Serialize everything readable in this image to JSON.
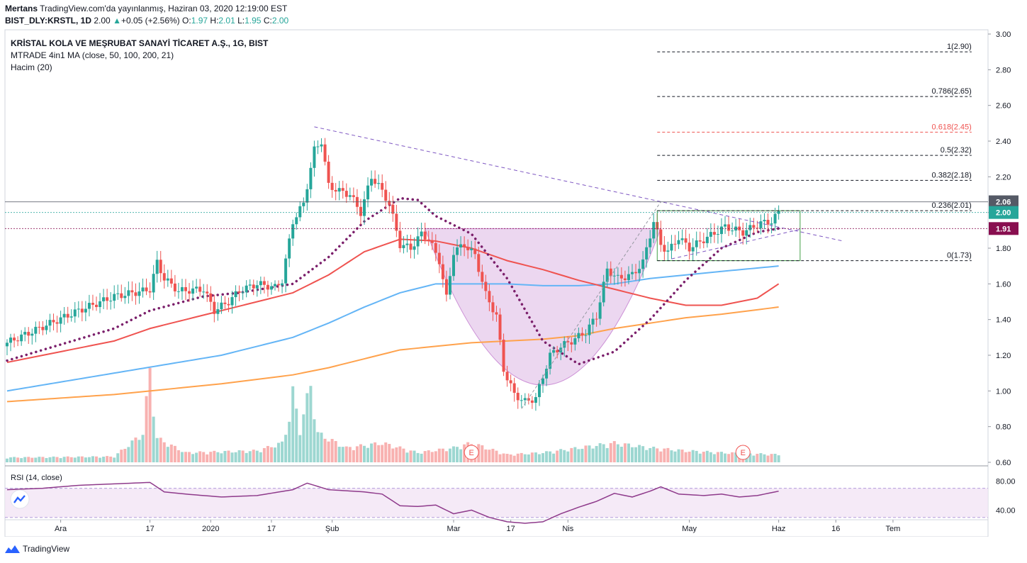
{
  "header": {
    "author": "Mertans",
    "published": "TradingView.com'da yayınlanmış, Haziran 03, 2020 12:19:00 EST",
    "symbol": "BIST_DLY:KRSTL, 1D",
    "price": "2.00",
    "change_arrow": "▲",
    "change": "+0.05 (+2.56%)",
    "o_label": "O:",
    "o": "1.97",
    "h_label": "H:",
    "h": "2.01",
    "l_label": "L:",
    "l": "1.95",
    "c_label": "C:",
    "c": "2.00"
  },
  "legend": {
    "title": "KRİSTAL KOLA VE MEŞRUBAT SANAYİ TİCARET A.Ş., 1G, BIST",
    "ma": "MTRADE 4in1 MA (close, 50, 100, 200, 21)",
    "volume": "Hacim (20)"
  },
  "rsi_label": "RSI (14, close)",
  "footer": {
    "brand": "TradingView"
  },
  "colors": {
    "up": "#26a69a",
    "down": "#ef5350",
    "ma50": "#ef5350",
    "ma100": "#64b5f6",
    "ma200": "#ffa24c",
    "ma21": "#7b1f6b",
    "cup": "#e1bee7",
    "trend": "#7e57c2",
    "rsi": "#8e3a8b",
    "last_price_bg": "#26a69a",
    "level_bg": "#880e4f",
    "prev_high_bg": "#555a66"
  },
  "chart_data": {
    "type": "candlestick",
    "y_axis": {
      "min": 0.6,
      "max": 3.0,
      "ticks": [
        "3.00",
        "2.80",
        "2.60",
        "2.40",
        "2.20",
        "2.00",
        "1.80",
        "1.60",
        "1.40",
        "1.20",
        "1.00",
        "0.80",
        "0.60"
      ]
    },
    "x_axis": {
      "labels": [
        "Ara",
        "17",
        "2020",
        "17",
        "Şub",
        "Mar",
        "17",
        "Nis",
        "May",
        "Haz",
        "16",
        "Tem"
      ],
      "label_bars": [
        15,
        40,
        57,
        74,
        91,
        125,
        141,
        157,
        191,
        216,
        232,
        248
      ],
      "total_bars": 276,
      "last_bar": 216
    },
    "fib_levels": [
      {
        "label": "1(2.90)",
        "value": 2.9
      },
      {
        "label": "0.786(2.65)",
        "value": 2.65
      },
      {
        "label": "0.618(2.45)",
        "value": 2.45,
        "highlight": true
      },
      {
        "label": "0.5(2.32)",
        "value": 2.32
      },
      {
        "label": "0.382(2.18)",
        "value": 2.18
      },
      {
        "label": "0.236(2.01)",
        "value": 2.01
      },
      {
        "label": "0(1.73)",
        "value": 1.73
      }
    ],
    "price_tags": [
      {
        "label": "2.06",
        "value": 2.06,
        "kind": "prev_high"
      },
      {
        "label": "2.00",
        "value": 2.0,
        "kind": "last"
      },
      {
        "label": "1.91",
        "value": 1.91,
        "kind": "level"
      }
    ],
    "close_path": [
      [
        0,
        1.27
      ],
      [
        10,
        1.36
      ],
      [
        20,
        1.45
      ],
      [
        30,
        1.53
      ],
      [
        38,
        1.56
      ],
      [
        40,
        1.57
      ],
      [
        42,
        1.72
      ],
      [
        44,
        1.63
      ],
      [
        48,
        1.56
      ],
      [
        55,
        1.57
      ],
      [
        58,
        1.45
      ],
      [
        62,
        1.5
      ],
      [
        65,
        1.56
      ],
      [
        70,
        1.6
      ],
      [
        75,
        1.58
      ],
      [
        77,
        1.62
      ],
      [
        80,
        1.95
      ],
      [
        83,
        2.05
      ],
      [
        86,
        2.35
      ],
      [
        88,
        2.4
      ],
      [
        90,
        2.15
      ],
      [
        93,
        2.12
      ],
      [
        96,
        2.1
      ],
      [
        99,
        2.0
      ],
      [
        102,
        2.2
      ],
      [
        104,
        2.15
      ],
      [
        107,
        2.05
      ],
      [
        110,
        1.82
      ],
      [
        113,
        1.8
      ],
      [
        116,
        1.88
      ],
      [
        118,
        1.85
      ],
      [
        121,
        1.73
      ],
      [
        123,
        1.52
      ],
      [
        125,
        1.78
      ],
      [
        128,
        1.82
      ],
      [
        131,
        1.76
      ],
      [
        134,
        1.54
      ],
      [
        137,
        1.42
      ],
      [
        139,
        1.12
      ],
      [
        142,
        0.98
      ],
      [
        145,
        0.94
      ],
      [
        148,
        0.96
      ],
      [
        152,
        1.2
      ],
      [
        155,
        1.25
      ],
      [
        158,
        1.28
      ],
      [
        162,
        1.33
      ],
      [
        165,
        1.42
      ],
      [
        168,
        1.68
      ],
      [
        171,
        1.63
      ],
      [
        175,
        1.65
      ],
      [
        178,
        1.72
      ],
      [
        181,
        1.95
      ],
      [
        183,
        1.82
      ],
      [
        185,
        1.78
      ],
      [
        188,
        1.86
      ],
      [
        191,
        1.8
      ],
      [
        196,
        1.86
      ],
      [
        201,
        1.92
      ],
      [
        206,
        1.89
      ],
      [
        211,
        1.94
      ],
      [
        214,
        1.95
      ],
      [
        216,
        2.0
      ]
    ],
    "volume_path": [
      [
        0,
        0.05
      ],
      [
        30,
        0.06
      ],
      [
        38,
        0.3
      ],
      [
        40,
        0.95
      ],
      [
        42,
        0.25
      ],
      [
        50,
        0.1
      ],
      [
        70,
        0.12
      ],
      [
        77,
        0.2
      ],
      [
        79,
        0.45
      ],
      [
        80,
        0.72
      ],
      [
        82,
        0.35
      ],
      [
        84,
        0.65
      ],
      [
        85,
        0.8
      ],
      [
        87,
        0.3
      ],
      [
        95,
        0.15
      ],
      [
        105,
        0.2
      ],
      [
        115,
        0.1
      ],
      [
        125,
        0.15
      ],
      [
        130,
        0.2
      ],
      [
        140,
        0.08
      ],
      [
        150,
        0.1
      ],
      [
        160,
        0.15
      ],
      [
        170,
        0.2
      ],
      [
        180,
        0.15
      ],
      [
        190,
        0.12
      ],
      [
        200,
        0.1
      ],
      [
        216,
        0.08
      ]
    ],
    "volume_max": 1.0,
    "ma": {
      "ma50": [
        [
          0,
          1.16
        ],
        [
          30,
          1.28
        ],
        [
          40,
          1.35
        ],
        [
          60,
          1.45
        ],
        [
          80,
          1.55
        ],
        [
          90,
          1.65
        ],
        [
          100,
          1.78
        ],
        [
          110,
          1.85
        ],
        [
          120,
          1.84
        ],
        [
          130,
          1.8
        ],
        [
          140,
          1.73
        ],
        [
          150,
          1.68
        ],
        [
          160,
          1.62
        ],
        [
          170,
          1.57
        ],
        [
          180,
          1.52
        ],
        [
          190,
          1.48
        ],
        [
          200,
          1.48
        ],
        [
          210,
          1.52
        ],
        [
          216,
          1.6
        ]
      ],
      "ma100": [
        [
          0,
          1.0
        ],
        [
          30,
          1.1
        ],
        [
          60,
          1.2
        ],
        [
          80,
          1.3
        ],
        [
          90,
          1.38
        ],
        [
          100,
          1.47
        ],
        [
          110,
          1.55
        ],
        [
          120,
          1.6
        ],
        [
          130,
          1.6
        ],
        [
          140,
          1.6
        ],
        [
          150,
          1.59
        ],
        [
          160,
          1.59
        ],
        [
          170,
          1.6
        ],
        [
          180,
          1.63
        ],
        [
          190,
          1.65
        ],
        [
          200,
          1.67
        ],
        [
          216,
          1.7
        ]
      ],
      "ma200": [
        [
          0,
          0.94
        ],
        [
          30,
          0.98
        ],
        [
          60,
          1.04
        ],
        [
          80,
          1.09
        ],
        [
          90,
          1.13
        ],
        [
          100,
          1.18
        ],
        [
          110,
          1.23
        ],
        [
          120,
          1.25
        ],
        [
          130,
          1.27
        ],
        [
          140,
          1.28
        ],
        [
          150,
          1.29
        ],
        [
          160,
          1.31
        ],
        [
          170,
          1.35
        ],
        [
          180,
          1.38
        ],
        [
          190,
          1.41
        ],
        [
          200,
          1.43
        ],
        [
          216,
          1.47
        ]
      ],
      "ma21": [
        [
          0,
          1.17
        ],
        [
          30,
          1.35
        ],
        [
          40,
          1.45
        ],
        [
          55,
          1.53
        ],
        [
          65,
          1.55
        ],
        [
          80,
          1.6
        ],
        [
          90,
          1.75
        ],
        [
          100,
          1.95
        ],
        [
          110,
          2.08
        ],
        [
          115,
          2.07
        ],
        [
          120,
          1.98
        ],
        [
          130,
          1.88
        ],
        [
          140,
          1.63
        ],
        [
          150,
          1.28
        ],
        [
          160,
          1.15
        ],
        [
          170,
          1.22
        ],
        [
          180,
          1.4
        ],
        [
          190,
          1.62
        ],
        [
          200,
          1.8
        ],
        [
          210,
          1.89
        ],
        [
          216,
          1.91
        ]
      ]
    },
    "rsi": {
      "min": 20,
      "max": 90,
      "ticks": [
        "80.00",
        "40.00"
      ],
      "overbought": 70,
      "oversold": 30,
      "path": [
        [
          0,
          68
        ],
        [
          10,
          70
        ],
        [
          20,
          74
        ],
        [
          30,
          76
        ],
        [
          40,
          78
        ],
        [
          44,
          65
        ],
        [
          50,
          62
        ],
        [
          60,
          58
        ],
        [
          70,
          60
        ],
        [
          80,
          68
        ],
        [
          84,
          77
        ],
        [
          90,
          68
        ],
        [
          100,
          65
        ],
        [
          105,
          62
        ],
        [
          110,
          46
        ],
        [
          115,
          45
        ],
        [
          120,
          47
        ],
        [
          125,
          35
        ],
        [
          130,
          40
        ],
        [
          135,
          30
        ],
        [
          140,
          24
        ],
        [
          145,
          22
        ],
        [
          150,
          24
        ],
        [
          155,
          35
        ],
        [
          160,
          44
        ],
        [
          165,
          52
        ],
        [
          170,
          63
        ],
        [
          175,
          58
        ],
        [
          180,
          66
        ],
        [
          183,
          72
        ],
        [
          188,
          62
        ],
        [
          195,
          60
        ],
        [
          200,
          62
        ],
        [
          205,
          58
        ],
        [
          210,
          60
        ],
        [
          216,
          66
        ]
      ]
    },
    "markers": [
      {
        "label": "E",
        "bar": 130
      },
      {
        "label": "E",
        "bar": 206
      }
    ]
  }
}
